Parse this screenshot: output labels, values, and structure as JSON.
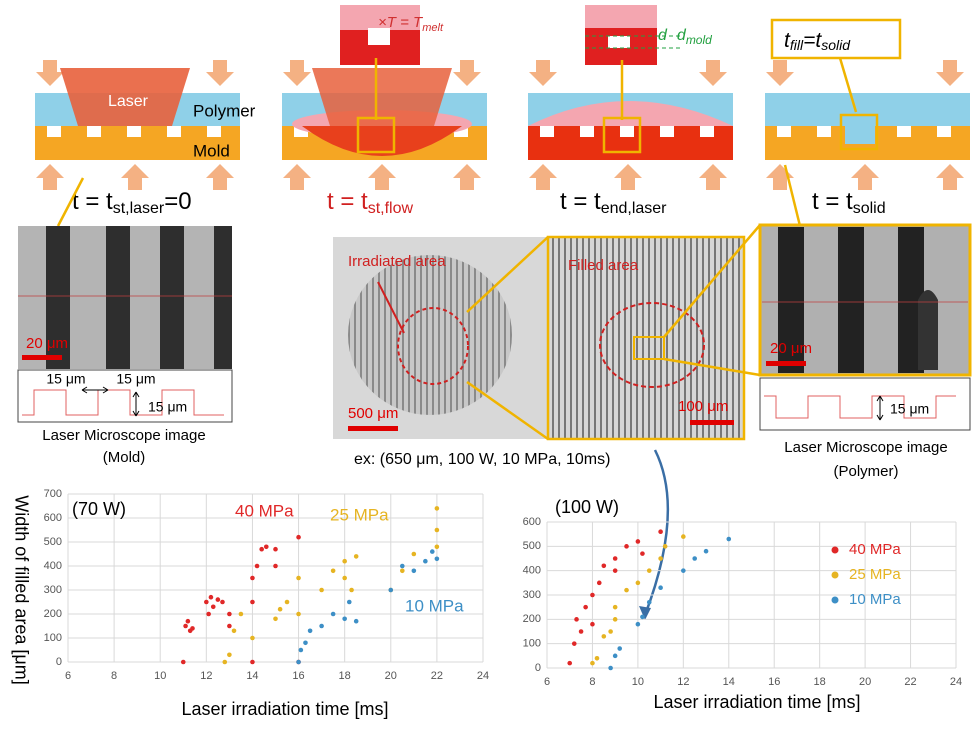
{
  "diagram": {
    "laser": "Laser",
    "polymer": "Polymer",
    "mold": "Mold",
    "melt": {
      "cross": "×",
      "t": "T",
      "eq": " = ",
      "t2": "T",
      "sub": "melt"
    },
    "depth": {
      "d": "d",
      "d2": "d",
      "sub": "mold"
    },
    "fill": {
      "t": "t",
      "sub": "fill",
      "eq": "=t",
      "sub2": "solid"
    },
    "times": [
      {
        "main": "t = t",
        "sub": "st,laser",
        "tail": "=0"
      },
      {
        "main": "t = t",
        "sub": "st,flow"
      },
      {
        "main": "t = t",
        "sub": "end,laser"
      },
      {
        "main": "t = t",
        "sub": "solid"
      }
    ]
  },
  "images": {
    "mold_scale": "20 μm",
    "mold_dims": [
      "15 μm",
      "15 μm",
      "15 μm"
    ],
    "mold_caption": [
      "Laser Microscope image",
      "(Mold)"
    ],
    "irradiated": "Irradiated area",
    "filled": "Filled area",
    "scale_500": "500 μm",
    "scale_100": "100 μm",
    "example": "ex: (650 μm, 100 W, 10 MPa, 10ms)",
    "poly_scale": "20 μm",
    "poly_dim": "15 μm",
    "poly_caption": [
      "Laser Microscope image",
      "(Polymer)"
    ]
  },
  "chart_data": [
    {
      "type": "scatter",
      "title": "(70 W)",
      "xlabel": "Laser irradiation time [ms]",
      "ylabel": "Width of filled area [μm]",
      "xlim": [
        6,
        24
      ],
      "ylim": [
        0,
        700
      ],
      "xticks": [
        6,
        8,
        10,
        12,
        14,
        16,
        18,
        20,
        22,
        24
      ],
      "yticks": [
        0,
        100,
        200,
        300,
        400,
        500,
        600,
        700
      ],
      "grid": true,
      "series": [
        {
          "name": "40 MPa",
          "color": "#e02828",
          "x": [
            11,
            11.1,
            11.2,
            11.3,
            11.4,
            12,
            12.1,
            12.2,
            12.3,
            12.5,
            12.7,
            13,
            13,
            14,
            14,
            14,
            14.2,
            14.4,
            14.6,
            15,
            15,
            16,
            16
          ],
          "values": [
            0,
            150,
            170,
            130,
            140,
            250,
            200,
            270,
            230,
            260,
            250,
            200,
            150,
            0,
            250,
            350,
            400,
            470,
            480,
            470,
            400,
            520,
            0
          ]
        },
        {
          "name": "25 MPa",
          "color": "#e6b422",
          "x": [
            12.8,
            13,
            13.2,
            13.5,
            14,
            15,
            15.2,
            15.5,
            16,
            16,
            17,
            17.5,
            18,
            18,
            18.5,
            18.3,
            20,
            20.5,
            21,
            22,
            22,
            22
          ],
          "values": [
            0,
            30,
            130,
            200,
            100,
            180,
            220,
            250,
            200,
            350,
            300,
            380,
            420,
            350,
            440,
            300,
            300,
            380,
            450,
            640,
            550,
            480
          ]
        },
        {
          "name": "10 MPa",
          "color": "#3d8fc6",
          "x": [
            16,
            16.1,
            16.3,
            16.5,
            17,
            17.5,
            18,
            18.5,
            18.2,
            20,
            20.5,
            21,
            21.5,
            22,
            21.8
          ],
          "values": [
            0,
            50,
            80,
            130,
            150,
            200,
            180,
            170,
            250,
            300,
            400,
            380,
            420,
            430,
            460
          ]
        }
      ]
    },
    {
      "type": "scatter",
      "title": "(100 W)",
      "xlabel": "Laser irradiation time [ms]",
      "xlim": [
        6,
        24
      ],
      "ylim": [
        0,
        600
      ],
      "xticks": [
        6,
        8,
        10,
        12,
        14,
        16,
        18,
        20,
        22,
        24
      ],
      "yticks": [
        0,
        100,
        200,
        300,
        400,
        500,
        600
      ],
      "grid": true,
      "legend": "upper right",
      "series": [
        {
          "name": "40 MPa",
          "color": "#e02828",
          "x": [
            7,
            7.2,
            7.3,
            7.5,
            7.7,
            8,
            8,
            8.3,
            8.5,
            9,
            9,
            9.5,
            10,
            10.2,
            11
          ],
          "values": [
            20,
            100,
            200,
            150,
            250,
            300,
            180,
            350,
            420,
            400,
            450,
            500,
            520,
            470,
            560
          ]
        },
        {
          "name": "25 MPa",
          "color": "#e6b422",
          "x": [
            8,
            8.2,
            8.5,
            8.8,
            9,
            9,
            9.5,
            10,
            10.5,
            11,
            11.2,
            12
          ],
          "values": [
            20,
            40,
            130,
            150,
            200,
            250,
            320,
            350,
            400,
            450,
            500,
            540
          ]
        },
        {
          "name": "10 MPa",
          "color": "#3d8fc6",
          "x": [
            8.8,
            9,
            9.2,
            10,
            10.2,
            10.5,
            11,
            12,
            12.5,
            13,
            14
          ],
          "values": [
            0,
            50,
            80,
            180,
            210,
            270,
            330,
            400,
            450,
            480,
            530
          ]
        }
      ]
    }
  ]
}
